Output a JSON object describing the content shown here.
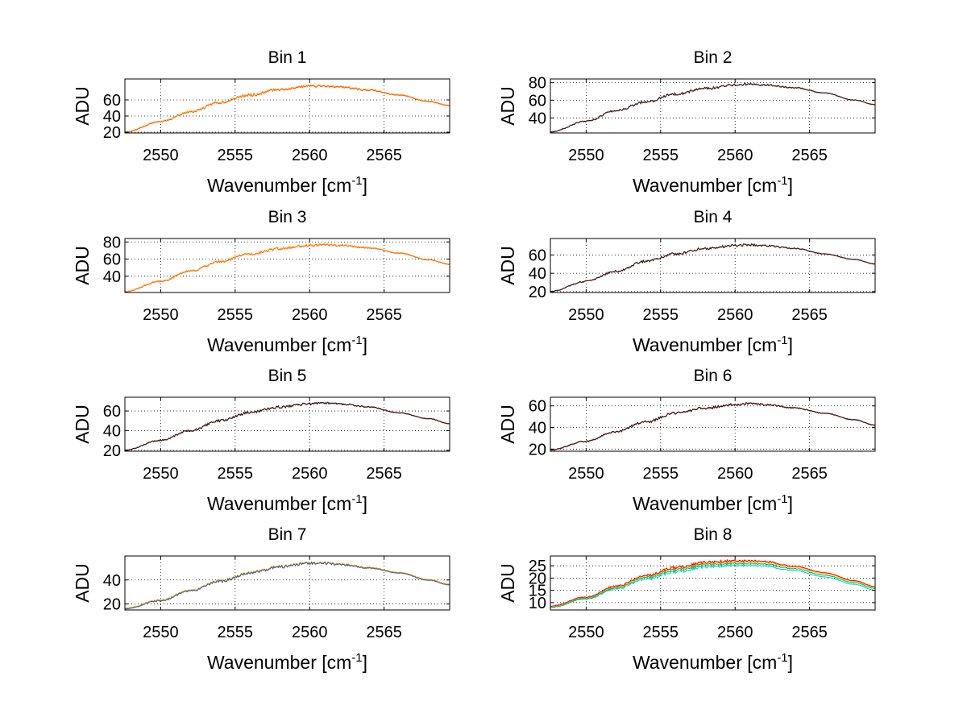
{
  "figure": {
    "xlabel_main": "Wavenumber [cm",
    "xlabel_sup": "-1",
    "xlabel_close": "]",
    "ylabel": "ADU"
  },
  "chart_data": [
    {
      "type": "line",
      "title": "Bin 1",
      "xlabel": "Wavenumber [cm-1]",
      "ylabel": "ADU",
      "xlim": [
        2547.6,
        2569.4
      ],
      "ylim": [
        19,
        86
      ],
      "xticks": [
        2550,
        2555,
        2560,
        2565
      ],
      "yticks": [
        20,
        40,
        60
      ],
      "grid": true,
      "x": [
        2547.6,
        2550,
        2552,
        2554,
        2556,
        2558,
        2560,
        2561,
        2562,
        2564,
        2566,
        2568,
        2569.4
      ],
      "series": [
        {
          "name": "series 1",
          "color": "#ff0000",
          "values": [
            20,
            33,
            45,
            57,
            66,
            73,
            77,
            77,
            76,
            72,
            66,
            58,
            53
          ]
        },
        {
          "name": "series 2",
          "color": "#ffa000",
          "values": [
            20.5,
            33.5,
            45.5,
            57.5,
            66.6,
            73.6,
            77.6,
            77.6,
            76.6,
            72.6,
            66.5,
            58.5,
            53.5
          ]
        }
      ]
    },
    {
      "type": "line",
      "title": "Bin 2",
      "xlabel": "Wavenumber [cm-1]",
      "ylabel": "ADU",
      "xlim": [
        2547.6,
        2569.4
      ],
      "ylim": [
        23,
        84
      ],
      "xticks": [
        2550,
        2555,
        2560,
        2565
      ],
      "yticks": [
        40,
        60,
        80
      ],
      "grid": true,
      "x": [
        2547.6,
        2550,
        2552,
        2554,
        2556,
        2558,
        2560,
        2561,
        2562,
        2564,
        2566,
        2568,
        2569.4
      ],
      "series": [
        {
          "name": "series 1",
          "color": "#cc0000",
          "values": [
            24,
            36,
            48,
            58,
            67,
            73,
            77,
            78,
            77,
            74,
            68,
            60,
            55
          ]
        },
        {
          "name": "series 2",
          "color": "#202020",
          "values": [
            24.3,
            36.3,
            48.3,
            58.3,
            67.3,
            73.3,
            77.3,
            78.3,
            77.3,
            74.3,
            68.3,
            60.3,
            55.3
          ]
        }
      ]
    },
    {
      "type": "line",
      "title": "Bin 3",
      "xlabel": "Wavenumber [cm-1]",
      "ylabel": "ADU",
      "xlim": [
        2547.6,
        2569.4
      ],
      "ylim": [
        21,
        84
      ],
      "xticks": [
        2550,
        2555,
        2560,
        2565
      ],
      "yticks": [
        40,
        60,
        80
      ],
      "grid": true,
      "x": [
        2547.6,
        2550,
        2552,
        2554,
        2556,
        2558,
        2560,
        2561,
        2562,
        2564,
        2566,
        2568,
        2569.4
      ],
      "series": [
        {
          "name": "series 1",
          "color": "#ff0000",
          "values": [
            22,
            34,
            46,
            57,
            66,
            72,
            76,
            77,
            76,
            73,
            67,
            59,
            54
          ]
        },
        {
          "name": "series 2",
          "color": "#ffa000",
          "values": [
            22.4,
            34.4,
            46.4,
            57.4,
            66.4,
            72.4,
            76.4,
            77.4,
            76.4,
            73.4,
            67.4,
            59.4,
            54.4
          ]
        }
      ]
    },
    {
      "type": "line",
      "title": "Bin 4",
      "xlabel": "Wavenumber [cm-1]",
      "ylabel": "ADU",
      "xlim": [
        2547.6,
        2569.4
      ],
      "ylim": [
        19,
        78
      ],
      "xticks": [
        2550,
        2555,
        2560,
        2565
      ],
      "yticks": [
        20,
        40,
        60
      ],
      "grid": true,
      "x": [
        2547.6,
        2550,
        2552,
        2554,
        2556,
        2558,
        2560,
        2561,
        2562,
        2564,
        2566,
        2568,
        2569.4
      ],
      "series": [
        {
          "name": "series 1",
          "color": "#cc0000",
          "values": [
            20,
            31,
            42,
            53,
            61,
            67,
            70,
            71,
            70,
            67,
            61,
            55,
            50
          ]
        },
        {
          "name": "series 2",
          "color": "#202020",
          "values": [
            20.3,
            31.3,
            42.3,
            53.3,
            61.3,
            67.3,
            70.3,
            71.3,
            70.3,
            67.3,
            61.3,
            55.3,
            50.3
          ]
        }
      ]
    },
    {
      "type": "line",
      "title": "Bin 5",
      "xlabel": "Wavenumber [cm-1]",
      "ylabel": "ADU",
      "xlim": [
        2547.6,
        2569.4
      ],
      "ylim": [
        19,
        74
      ],
      "xticks": [
        2550,
        2555,
        2560,
        2565
      ],
      "yticks": [
        20,
        40,
        60
      ],
      "grid": true,
      "x": [
        2547.6,
        2550,
        2552,
        2554,
        2556,
        2558,
        2560,
        2561,
        2562,
        2564,
        2566,
        2568,
        2569.4
      ],
      "series": [
        {
          "name": "series 1",
          "color": "#cc0000",
          "values": [
            20,
            30,
            40,
            50,
            58,
            64,
            67,
            68,
            67,
            64,
            58,
            52,
            47
          ]
        },
        {
          "name": "series 2",
          "color": "#202020",
          "values": [
            20.3,
            30.3,
            40.3,
            50.3,
            58.3,
            64.3,
            67.3,
            68.3,
            67.3,
            64.3,
            58.3,
            52.3,
            47.3
          ]
        }
      ]
    },
    {
      "type": "line",
      "title": "Bin 6",
      "xlabel": "Wavenumber [cm-1]",
      "ylabel": "ADU",
      "xlim": [
        2547.6,
        2569.4
      ],
      "ylim": [
        18,
        68
      ],
      "xticks": [
        2550,
        2555,
        2560,
        2565
      ],
      "yticks": [
        20,
        40,
        60
      ],
      "grid": true,
      "x": [
        2547.6,
        2550,
        2552,
        2554,
        2556,
        2558,
        2560,
        2561,
        2562,
        2564,
        2566,
        2568,
        2569.4
      ],
      "series": [
        {
          "name": "series 1",
          "color": "#cc0000",
          "values": [
            19,
            27,
            36,
            45,
            53,
            58,
            61,
            62,
            61,
            58,
            53,
            47,
            42
          ]
        },
        {
          "name": "series 2",
          "color": "#202020",
          "values": [
            19.3,
            27.3,
            36.3,
            45.3,
            53.3,
            58.3,
            61.3,
            62.3,
            61.3,
            58.3,
            53.3,
            47.3,
            42.3
          ]
        }
      ]
    },
    {
      "type": "line",
      "title": "Bin 7",
      "xlabel": "Wavenumber [cm-1]",
      "ylabel": "ADU",
      "xlim": [
        2547.6,
        2569.4
      ],
      "ylim": [
        15,
        60
      ],
      "xticks": [
        2550,
        2555,
        2560,
        2565
      ],
      "yticks": [
        20,
        40
      ],
      "grid": true,
      "x": [
        2547.6,
        2550,
        2552,
        2554,
        2556,
        2558,
        2560,
        2561,
        2562,
        2564,
        2566,
        2568,
        2569.4
      ],
      "series": [
        {
          "name": "series 1",
          "color": "#ff0000",
          "values": [
            16,
            23,
            31,
            39,
            46,
            51,
            54,
            54,
            53,
            50,
            46,
            40,
            36
          ]
        },
        {
          "name": "series 2",
          "color": "#ffa000",
          "values": [
            16.4,
            23.4,
            31.4,
            39.4,
            46.4,
            51.4,
            54.4,
            54.4,
            53.4,
            50.4,
            46.4,
            40.4,
            36.4
          ]
        },
        {
          "name": "series 3",
          "color": "#3060a0",
          "values": [
            15.8,
            22.8,
            30.8,
            38.8,
            45.8,
            50.8,
            53.8,
            53.8,
            52.8,
            49.8,
            45.8,
            39.8,
            35.8
          ]
        }
      ]
    },
    {
      "type": "line",
      "title": "Bin 8",
      "xlabel": "Wavenumber [cm-1]",
      "ylabel": "ADU",
      "xlim": [
        2547.6,
        2569.4
      ],
      "ylim": [
        7,
        29
      ],
      "xticks": [
        2550,
        2555,
        2560,
        2565
      ],
      "yticks": [
        10,
        15,
        20,
        25
      ],
      "grid": true,
      "x": [
        2547.6,
        2550,
        2552,
        2554,
        2556,
        2558,
        2560,
        2561,
        2562,
        2564,
        2566,
        2568,
        2569.4
      ],
      "series": [
        {
          "name": "series 1",
          "color": "#00c8d8",
          "values": [
            8,
            11.5,
            15.5,
            19.5,
            22.5,
            24.5,
            25.2,
            25.2,
            24.8,
            23,
            20.5,
            17.5,
            15
          ]
        },
        {
          "name": "series 2",
          "color": "#00b050",
          "values": [
            8.2,
            11.8,
            16,
            20.2,
            23.3,
            25.4,
            26,
            26,
            25.6,
            23.8,
            21.2,
            18.2,
            15.7
          ]
        },
        {
          "name": "series 3",
          "color": "#ffc800",
          "values": [
            8.4,
            12.1,
            16.4,
            20.7,
            23.9,
            26,
            26.7,
            26.7,
            26.3,
            24.4,
            21.8,
            18.7,
            16.2
          ]
        },
        {
          "name": "series 4",
          "color": "#ff0000",
          "values": [
            8.6,
            12.3,
            16.7,
            21,
            24.3,
            26.4,
            27.1,
            27.1,
            26.7,
            24.8,
            22.2,
            19,
            16.5
          ]
        }
      ]
    }
  ]
}
